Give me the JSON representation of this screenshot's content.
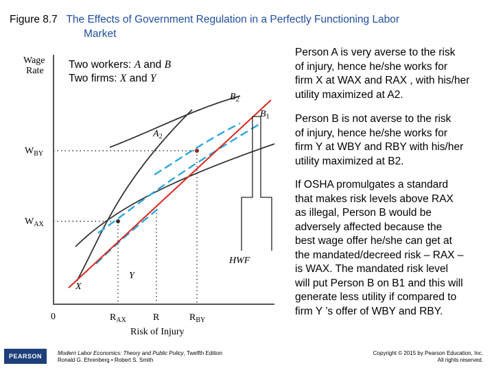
{
  "title": {
    "figure_num": "Figure 8.7",
    "line1": "The Effects of Government Regulation in a Perfectly Functioning Labor",
    "line2": "Market"
  },
  "diagram": {
    "y_axis_label_1": "Wage",
    "y_axis_label_2": "Rate",
    "x_axis_label": "Risk of Injury",
    "origin": "0",
    "legend_line1_a": "Two workers: ",
    "legend_line1_b": "A",
    "legend_line1_c": " and ",
    "legend_line1_d": "B",
    "legend_line2_a": "Two firms: ",
    "legend_line2_b": "X",
    "legend_line2_c": " and ",
    "legend_line2_d": "Y",
    "labels": {
      "w_by": "W",
      "w_by_sub": "BY",
      "w_ax": "W",
      "w_ax_sub": "AX",
      "r_ax": "R",
      "r_ax_sub": "AX",
      "r": "R",
      "r_by": "R",
      "r_by_sub": "BY",
      "a2": "A",
      "a2_sub": "2",
      "b2": "B",
      "b2_sub": "2",
      "b1": "B",
      "b1_sub": "1",
      "x": "X",
      "y": "Y",
      "hwf": "HWF"
    },
    "colors": {
      "hwf_line": "#d9261c",
      "offer_curves": "#2aa7e0",
      "indifference": "#333333"
    }
  },
  "paragraphs": {
    "p1": [
      "Person A is very averse to the risk",
      "of injury, hence he/she works for",
      "firm X at WAX and RAX , with his/her",
      "utility maximized at A2."
    ],
    "p2": [
      "Person B is not averse to the risk",
      "of  injury, hence he/she works for",
      "firm Y at WBY and RBY with his/her",
      "utility maximized at B2."
    ],
    "p3": [
      "If OSHA promulgates a standard",
      "that makes risk levels above RAX",
      "as illegal, Person B would be",
      "adversely affected because the",
      "best wage offer he/she can get at",
      "the mandated/decreed risk – RAX –",
      "is WAX. The mandated risk level",
      "will put Person B on B1 and this will",
      "generate less utility if compared to",
      "firm Y ’s  offer of WBY and RBY."
    ]
  },
  "footer": {
    "logo": "PEARSON",
    "book_title": "Modern Labor Economics: Theory and Public Policy",
    "book_edition": ", Twelfth Edition",
    "authors": "Ronald G. Ehrenberg • Robert S. Smith",
    "copyright_1": "Copyright © 2015 by Pearson Education, Inc.",
    "copyright_2": "All rights reserved."
  }
}
